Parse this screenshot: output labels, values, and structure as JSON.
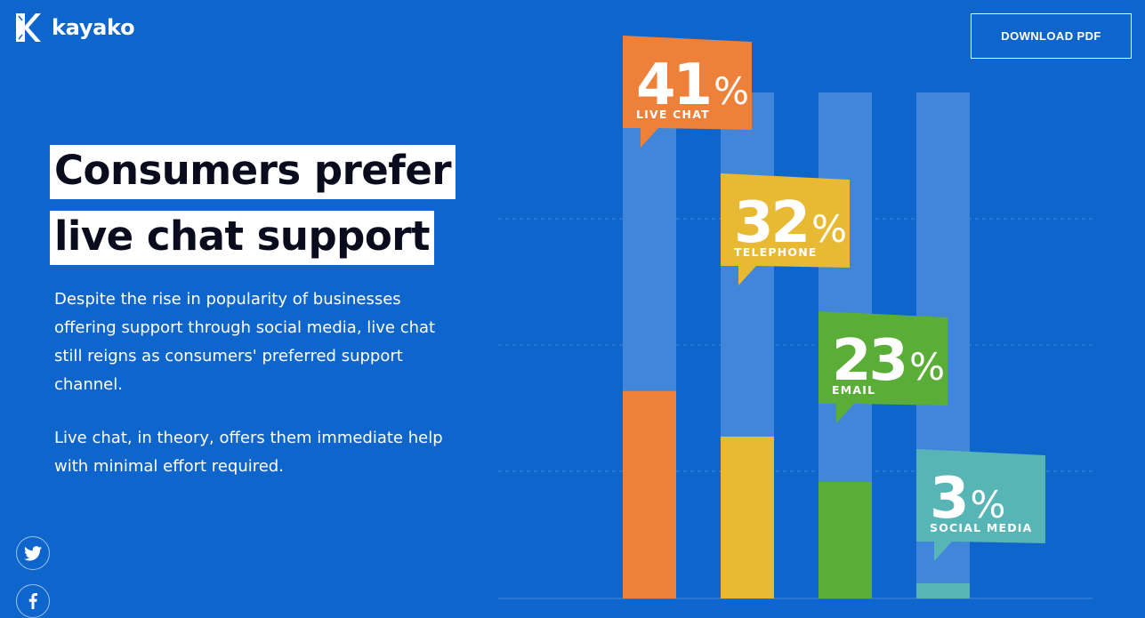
{
  "brand": {
    "name": "kayako"
  },
  "header": {
    "download_label": "DOWNLOAD PDF"
  },
  "headline": {
    "line1": "Consumers prefer",
    "line2": "live chat support"
  },
  "description": {
    "p1": "Despite the rise in popularity of businesses offering support through social media, live chat still reigns as consumers' preferred support channel.",
    "p2": "Live chat, in theory, offers them immediate help with minimal effort required."
  },
  "social": [
    {
      "name": "twitter",
      "icon": "twitter-icon"
    },
    {
      "name": "facebook",
      "icon": "facebook-icon"
    }
  ],
  "colors": {
    "background": "#0e66cc",
    "track": "#4186d8",
    "live_chat": "#ee8139",
    "telephone": "#e8b933",
    "email": "#5aae37",
    "social_media": "#57b5b5"
  },
  "chart_data": {
    "type": "bar",
    "categories": [
      "LIVE CHAT",
      "TELEPHONE",
      "EMAIL",
      "SOCIAL MEDIA"
    ],
    "values": [
      41,
      32,
      23,
      3
    ],
    "labels": [
      "41",
      "32",
      "23",
      "3"
    ],
    "unit": "%",
    "ylim": [
      0,
      100
    ],
    "grid": true,
    "colors": [
      "#ee8139",
      "#e8b933",
      "#5aae37",
      "#57b5b5"
    ]
  }
}
